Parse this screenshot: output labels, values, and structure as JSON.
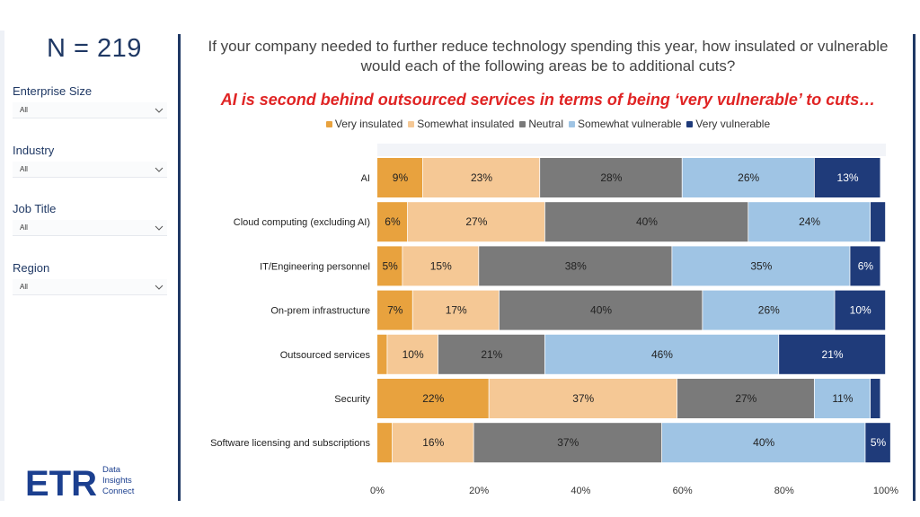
{
  "sidebar": {
    "n_label": "N = 219",
    "filters": [
      {
        "label": "Enterprise Size",
        "value": "All"
      },
      {
        "label": "Industry",
        "value": "All"
      },
      {
        "label": "Job Title",
        "value": "All"
      },
      {
        "label": "Region",
        "value": "All"
      }
    ],
    "logo": {
      "wordmark": "ETR",
      "line1": "Data",
      "line2": "Insights",
      "line3": "Connect"
    }
  },
  "header": {
    "question": "If your company needed to further reduce technology spending this year, how insulated or vulnerable would each of the following areas be to additional cuts?",
    "headline": "AI is second behind outsourced services in terms of being ‘very vulnerable’ to cuts…"
  },
  "colors": {
    "very_insulated": "#e8a23e",
    "somewhat_insulated": "#f5c895",
    "neutral": "#7a7a7a",
    "somewhat_vulnerable": "#9fc4e4",
    "very_vulnerable": "#1f3b7a",
    "headline": "#e02424",
    "brand": "#1b3f8f"
  },
  "chart_data": {
    "type": "bar",
    "orientation": "horizontal",
    "stacked": true,
    "xlim": [
      0,
      100
    ],
    "x_ticks": [
      "0%",
      "20%",
      "40%",
      "60%",
      "80%",
      "100%"
    ],
    "legend_position": "top",
    "categories": [
      "AI",
      "Cloud computing (excluding AI)",
      "IT/Engineering personnel",
      "On-prem infrastructure",
      "Outsourced services",
      "Security",
      "Software licensing and subscriptions"
    ],
    "series": [
      {
        "name": "Very insulated",
        "key": "very_insulated",
        "values": [
          9,
          6,
          5,
          7,
          2,
          22,
          3
        ],
        "labels": [
          "9%",
          "6%",
          "5%",
          "7%",
          "",
          "22%",
          ""
        ]
      },
      {
        "name": "Somewhat insulated",
        "key": "somewhat_insulated",
        "values": [
          23,
          27,
          15,
          17,
          10,
          37,
          16
        ],
        "labels": [
          "23%",
          "27%",
          "15%",
          "17%",
          "10%",
          "37%",
          "16%"
        ]
      },
      {
        "name": "Neutral",
        "key": "neutral",
        "values": [
          28,
          40,
          38,
          40,
          21,
          27,
          37
        ],
        "labels": [
          "28%",
          "40%",
          "38%",
          "40%",
          "21%",
          "27%",
          "37%"
        ]
      },
      {
        "name": "Somewhat vulnerable",
        "key": "somewhat_vulnerable",
        "values": [
          26,
          24,
          35,
          26,
          46,
          11,
          40
        ],
        "labels": [
          "26%",
          "24%",
          "35%",
          "26%",
          "46%",
          "11%",
          "40%"
        ]
      },
      {
        "name": "Very vulnerable",
        "key": "very_vulnerable",
        "values": [
          13,
          3,
          6,
          10,
          21,
          2,
          5
        ],
        "labels": [
          "13%",
          "",
          "6%",
          "10%",
          "21%",
          "",
          "5%"
        ]
      }
    ]
  }
}
